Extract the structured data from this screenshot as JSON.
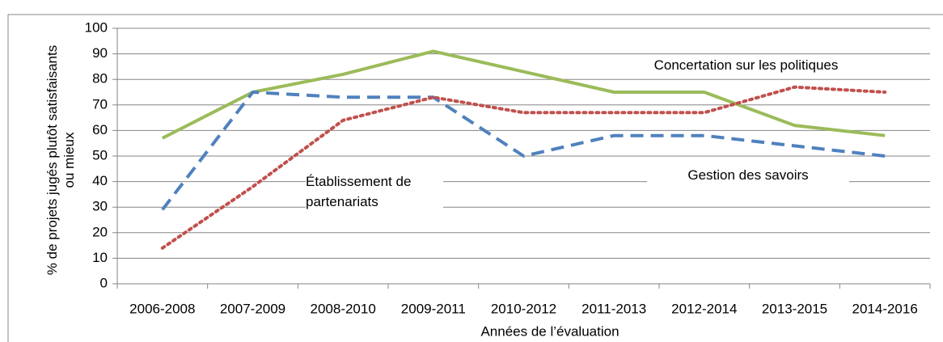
{
  "chart_data": {
    "type": "line",
    "x_label": "Années de l’évaluation",
    "y_label": "% de projets jugés plutôt satisfaisants ou mieux",
    "categories": [
      "2006-2008",
      "2007-2009",
      "2008-2010",
      "2009-2011",
      "2010-2012",
      "2011-2013",
      "2012-2014",
      "2013-2015",
      "2014-2016"
    ],
    "series": [
      {
        "name": "Concertation sur les politiques",
        "color": "#9bbb59",
        "dash": "solid",
        "values": [
          57,
          75,
          82,
          91,
          83,
          75,
          75,
          62,
          58
        ]
      },
      {
        "name": "Gestion des savoirs",
        "color": "#4f81bd",
        "dash": "dashed",
        "values": [
          29,
          75,
          73,
          73,
          50,
          58,
          58,
          54,
          50
        ]
      },
      {
        "name": "Établissement de partenariats",
        "color": "#c0504d",
        "dash": "dotted",
        "values": [
          14,
          38,
          64,
          73,
          67,
          67,
          67,
          77,
          75
        ]
      }
    ],
    "ylim": [
      0,
      100
    ],
    "yticks": [
      0,
      10,
      20,
      30,
      40,
      50,
      60,
      70,
      80,
      90,
      100
    ],
    "grid": true
  }
}
